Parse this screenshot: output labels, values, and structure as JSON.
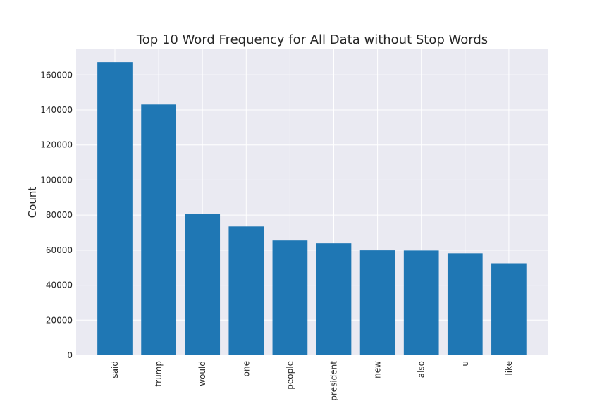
{
  "chart_data": {
    "type": "bar",
    "title": "Top 10 Word Frequency for All Data without Stop Words",
    "xlabel": "",
    "ylabel": "Count",
    "categories": [
      "said",
      "trump",
      "would",
      "one",
      "people",
      "president",
      "new",
      "also",
      "u",
      "like"
    ],
    "values": [
      167300,
      143100,
      80600,
      73500,
      65500,
      63900,
      59900,
      59800,
      58200,
      52500
    ],
    "ylim": [
      0,
      175000
    ],
    "yticks": [
      0,
      20000,
      40000,
      60000,
      80000,
      100000,
      120000,
      140000,
      160000
    ],
    "grid": true,
    "legend": "none",
    "bar_color": "#1f77b4",
    "background_color": "#eaeaf2",
    "grid_color": "#ffffff"
  }
}
